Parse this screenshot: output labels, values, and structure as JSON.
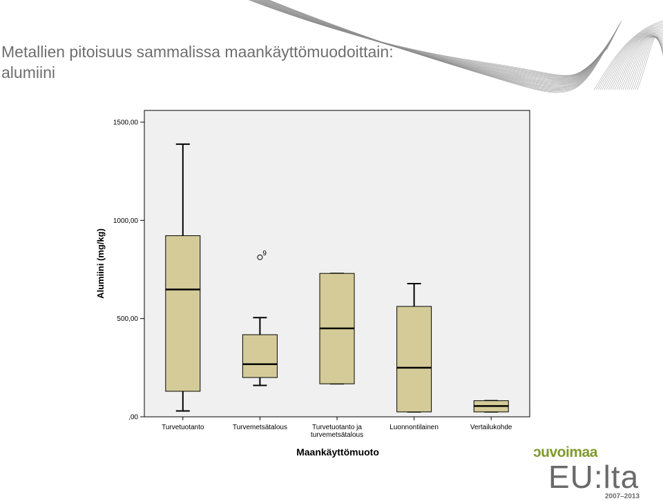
{
  "slide": {
    "title_line1": "Metallien pitoisuus sammalissa maankäyttömuodoittain:",
    "title_line2": "alumiini"
  },
  "logo": {
    "line1": "ɔuvoimaa",
    "line2": "EU:lta",
    "line3": "2007–2013",
    "accent_color": "#7f9a2a",
    "text_color": "#6a6a6a"
  },
  "colors": {
    "plot_background": "#f0f0f0",
    "box_fill": "#d4cb98",
    "stroke": "#000000"
  },
  "chart_data": {
    "type": "boxplot",
    "xlabel": "Maankäyttömuoto",
    "ylabel": "Alumiini (mg/kg)",
    "ylim": [
      0,
      1500
    ],
    "yticks": [
      0,
      500,
      1000,
      1500
    ],
    "ytick_labels": [
      ",00",
      "500,00",
      "1000,00",
      "1500,00"
    ],
    "grid": false,
    "legend": "none",
    "categories": [
      [
        "Turvetuotanto"
      ],
      [
        "Turvemetsätalous"
      ],
      [
        "Turvetuotanto ja",
        "turvemetsätalous"
      ],
      [
        "Luonnontilainen"
      ],
      [
        "Vertailukohde"
      ]
    ],
    "boxes": [
      {
        "whisker_low": 30,
        "q1": 130,
        "median": 648,
        "q3": 922,
        "whisker_high": 1388
      },
      {
        "whisker_low": 160,
        "q1": 200,
        "median": 268,
        "q3": 418,
        "whisker_high": 505
      },
      {
        "whisker_low": 168,
        "q1": 168,
        "median": 450,
        "q3": 730,
        "whisker_high": 730
      },
      {
        "whisker_low": 25,
        "q1": 25,
        "median": 250,
        "q3": 562,
        "whisker_high": 678
      },
      {
        "whisker_low": 25,
        "q1": 25,
        "median": 55,
        "q3": 82,
        "whisker_high": 82
      }
    ],
    "outliers": [
      {
        "category_index": 1,
        "value": 812,
        "label": "9"
      }
    ]
  }
}
